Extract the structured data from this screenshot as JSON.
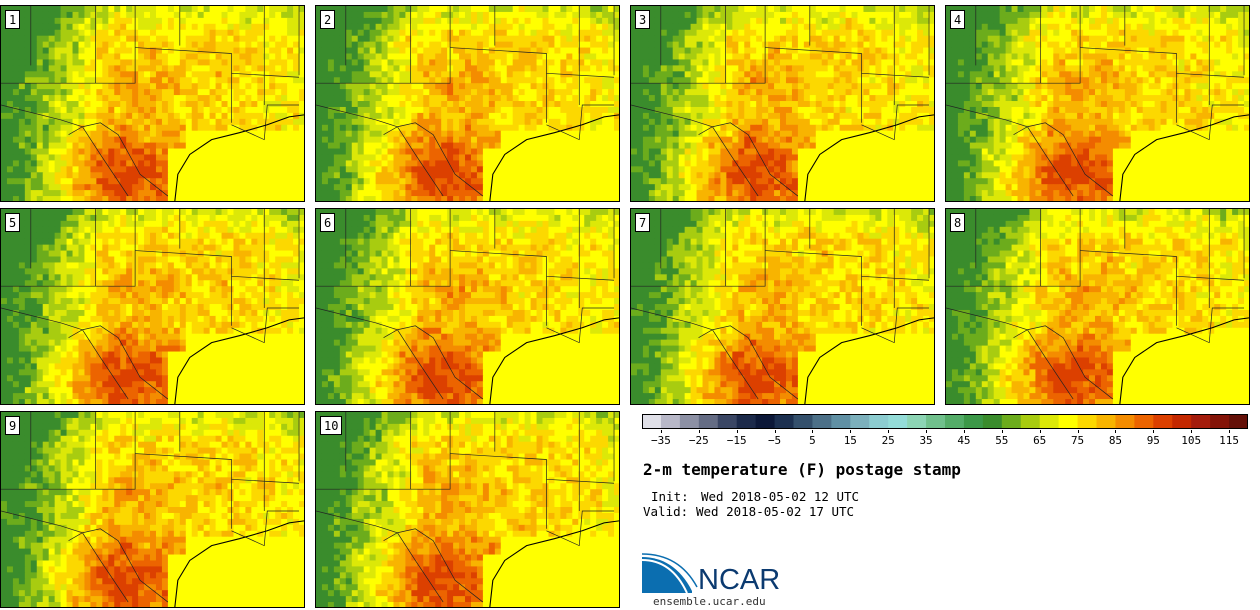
{
  "panels": [
    {
      "label": "1",
      "seed": 11
    },
    {
      "label": "2",
      "seed": 22
    },
    {
      "label": "3",
      "seed": 33
    },
    {
      "label": "4",
      "seed": 44
    },
    {
      "label": "5",
      "seed": 55
    },
    {
      "label": "6",
      "seed": 66
    },
    {
      "label": "7",
      "seed": 77
    },
    {
      "label": "8",
      "seed": 88
    },
    {
      "label": "9",
      "seed": 99
    },
    {
      "label": "10",
      "seed": 110
    }
  ],
  "colorbar": {
    "colors": [
      "#e0e0e8",
      "#b8b8c8",
      "#8c90a4",
      "#646c84",
      "#3a4664",
      "#1c2a4a",
      "#0c1838",
      "#1c3050",
      "#34506c",
      "#4c7088",
      "#6090a4",
      "#7cb0bc",
      "#8cccd0",
      "#94dcd8",
      "#8cd4b4",
      "#70c08c",
      "#54ac68",
      "#3c9848",
      "#3a8c2c",
      "#6cac1c",
      "#a8cc10",
      "#dce808",
      "#ffff00",
      "#fcd800",
      "#f8b400",
      "#f48c00",
      "#ec6400",
      "#dc4000",
      "#c42800",
      "#a41c0c",
      "#841408",
      "#641008"
    ],
    "ticks": [
      "−35",
      "−25",
      "−15",
      "−5",
      "5",
      "15",
      "25",
      "35",
      "45",
      "55",
      "65",
      "75",
      "85",
      "95",
      "105",
      "115"
    ],
    "min": -40,
    "max": 120
  },
  "title": "2-m temperature (F) postage stamp",
  "init_label": "Init:",
  "init_value": "Wed 2018-05-02 12 UTC",
  "valid_label": "Valid:",
  "valid_value": "Wed 2018-05-02 17 UTC",
  "logo": {
    "text": "NCAR",
    "url": "ensemble.ucar.edu"
  }
}
